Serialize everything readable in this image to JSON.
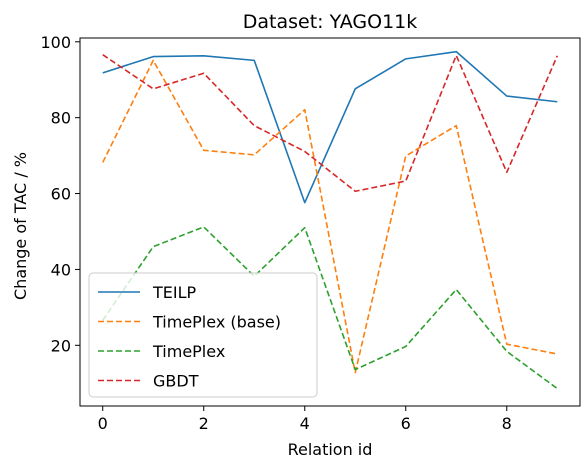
{
  "chart_data": {
    "type": "line",
    "title": "Dataset: YAGO11k",
    "xlabel": "Relation id",
    "ylabel": "Change of TAC / %",
    "x": [
      0,
      1,
      2,
      3,
      4,
      5,
      6,
      7,
      8,
      9
    ],
    "xlim": [
      -0.45,
      9.45
    ],
    "ylim": [
      4,
      101
    ],
    "xticks": [
      0,
      2,
      4,
      6,
      8
    ],
    "yticks": [
      20,
      40,
      60,
      80,
      100
    ],
    "legend_position": "lower-left",
    "grid": false,
    "series": [
      {
        "name": "TEILP",
        "color": "#1f77b4",
        "style": "solid",
        "values": [
          91.8,
          96.1,
          96.3,
          95.1,
          57.6,
          87.6,
          95.5,
          97.4,
          85.7,
          84.2
        ]
      },
      {
        "name": "TimePlex (base)",
        "color": "#ff7f0e",
        "style": "dashed",
        "values": [
          68.2,
          95.1,
          71.4,
          70.2,
          82.1,
          12.8,
          69.9,
          77.9,
          20.3,
          17.7
        ]
      },
      {
        "name": "TimePlex",
        "color": "#2ca02c",
        "style": "dashed",
        "values": [
          26.6,
          46.0,
          51.2,
          38.2,
          51.0,
          13.6,
          19.7,
          34.7,
          18.4,
          8.6
        ]
      },
      {
        "name": "GBDT",
        "color": "#d62728",
        "style": "dashed",
        "values": [
          96.6,
          87.6,
          91.7,
          77.9,
          71.1,
          60.6,
          63.3,
          96.4,
          65.6,
          96.3
        ]
      }
    ]
  }
}
